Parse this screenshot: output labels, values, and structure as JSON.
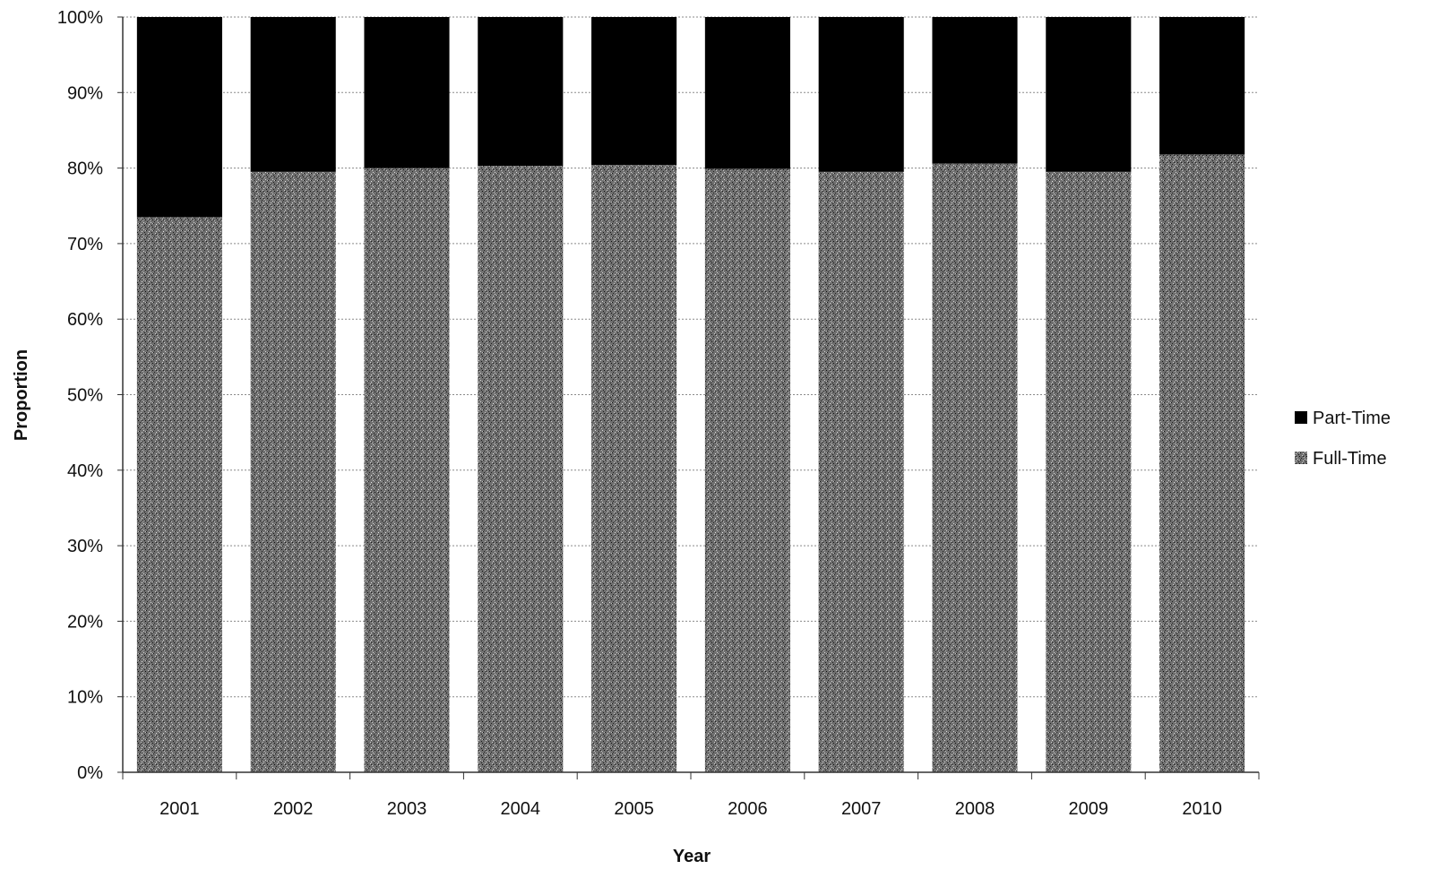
{
  "chart_data": {
    "type": "bar",
    "stacked": true,
    "percent_stacked": true,
    "title": "",
    "xlabel": "Year",
    "ylabel": "Proportion",
    "categories": [
      "2001",
      "2002",
      "2003",
      "2004",
      "2005",
      "2006",
      "2007",
      "2008",
      "2009",
      "2010"
    ],
    "series": [
      {
        "name": "Full-Time",
        "values": [
          73.5,
          79.5,
          80.0,
          80.3,
          80.4,
          79.9,
          79.5,
          80.6,
          79.5,
          81.8
        ],
        "color": "#7a7a7a",
        "pattern": "speckled"
      },
      {
        "name": "Part-Time",
        "values": [
          26.5,
          20.5,
          20.0,
          19.7,
          19.6,
          20.1,
          20.5,
          19.4,
          20.5,
          18.2
        ],
        "color": "#000000",
        "pattern": "solid"
      }
    ],
    "ylim": [
      0,
      100
    ],
    "yticks": [
      "0%",
      "10%",
      "20%",
      "30%",
      "40%",
      "50%",
      "60%",
      "70%",
      "80%",
      "90%",
      "100%"
    ],
    "grid": true,
    "legend_position": "right",
    "legend": [
      "Part-Time",
      "Full-Time"
    ]
  }
}
